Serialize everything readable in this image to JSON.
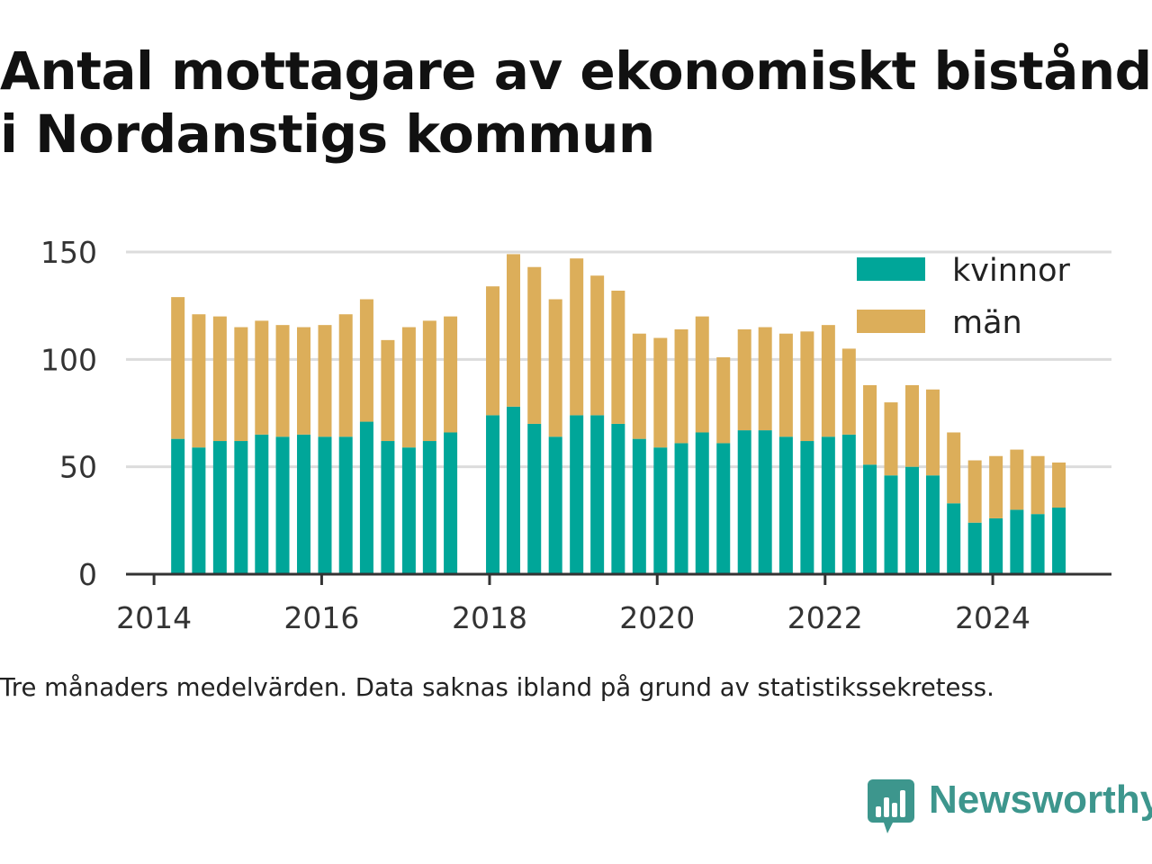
{
  "header": {
    "title_line1": "Antal mottagare av ekonomiskt bistånd",
    "title_line2": "i Nordanstigs kommun"
  },
  "caption": "Tre månaders medelvärden. Data saknas ibland på grund av statistikssekretess.",
  "brand": {
    "name": "Newsworthy",
    "icon": "newsworthy-logo-icon",
    "color": "#3d968d"
  },
  "chart_data": {
    "type": "bar",
    "stacked": true,
    "x_type": "date",
    "xlim": [
      "2013-09-01",
      "2025-06-01"
    ],
    "ylim": [
      0,
      150
    ],
    "yticks": [
      0,
      50,
      100,
      150
    ],
    "xticks": [
      {
        "date": "2014-01-01",
        "label": "2014"
      },
      {
        "date": "2016-01-01",
        "label": "2016"
      },
      {
        "date": "2018-01-01",
        "label": "2018"
      },
      {
        "date": "2020-01-01",
        "label": "2020"
      },
      {
        "date": "2022-01-01",
        "label": "2022"
      },
      {
        "date": "2024-01-01",
        "label": "2024"
      }
    ],
    "grid": true,
    "legend_position": "top-right",
    "series_colors": {
      "kvinnor": "#00a699",
      "män": "#dcae5a"
    },
    "x": [
      "2014-04-15",
      "2014-07-15",
      "2014-10-15",
      "2015-01-15",
      "2015-04-15",
      "2015-07-15",
      "2015-10-15",
      "2016-01-15",
      "2016-04-15",
      "2016-07-15",
      "2016-10-15",
      "2017-01-15",
      "2017-04-15",
      "2017-07-15",
      "2018-01-15",
      "2018-04-15",
      "2018-07-15",
      "2018-10-15",
      "2019-01-15",
      "2019-04-15",
      "2019-07-15",
      "2019-10-15",
      "2020-01-15",
      "2020-04-15",
      "2020-07-15",
      "2020-10-15",
      "2021-01-15",
      "2021-04-15",
      "2021-07-15",
      "2021-10-15",
      "2022-01-15",
      "2022-04-15",
      "2022-07-15",
      "2022-10-15",
      "2023-01-15",
      "2023-04-15",
      "2023-07-15",
      "2023-10-15",
      "2024-01-15",
      "2024-04-15",
      "2024-07-15",
      "2024-10-15"
    ],
    "series": [
      {
        "name": "kvinnor",
        "values": [
          63,
          59,
          62,
          62,
          65,
          64,
          65,
          64,
          64,
          71,
          62,
          59,
          62,
          66,
          74,
          78,
          70,
          64,
          74,
          74,
          70,
          63,
          59,
          61,
          66,
          61,
          67,
          67,
          64,
          62,
          64,
          65,
          51,
          46,
          50,
          46,
          33,
          24,
          26,
          30,
          28,
          31
        ]
      },
      {
        "name": "män",
        "values": [
          66,
          62,
          58,
          53,
          53,
          52,
          50,
          52,
          57,
          57,
          47,
          56,
          56,
          54,
          60,
          71,
          73,
          64,
          73,
          65,
          62,
          49,
          51,
          53,
          54,
          40,
          47,
          48,
          48,
          51,
          52,
          40,
          37,
          34,
          38,
          40,
          33,
          29,
          29,
          28,
          27,
          21
        ]
      }
    ],
    "legend": [
      {
        "label": "kvinnor",
        "color": "#00a699"
      },
      {
        "label": "män",
        "color": "#dcae5a"
      }
    ]
  }
}
